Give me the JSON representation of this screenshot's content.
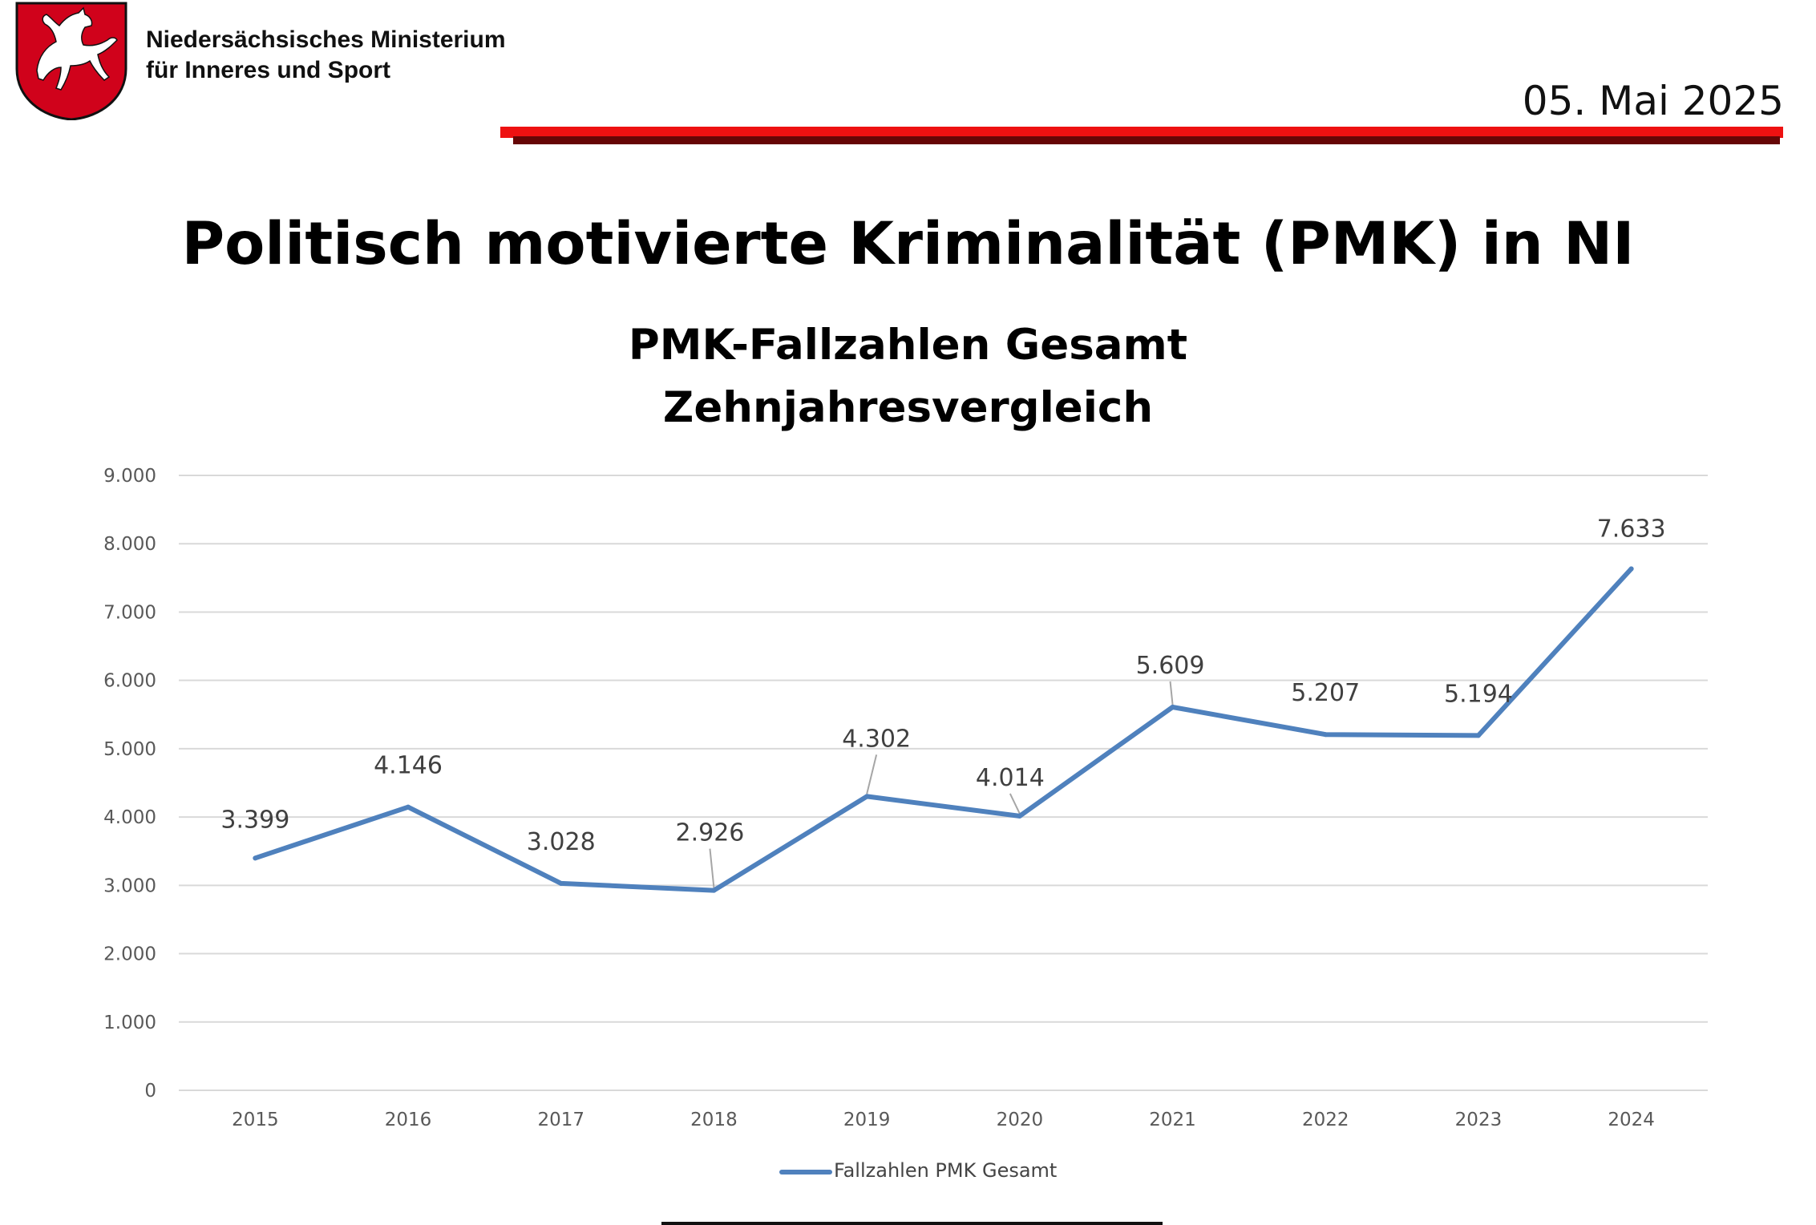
{
  "header": {
    "ministry_line_1": "Niedersächsisches Ministerium",
    "ministry_line_2": "für Inneres und Sport",
    "date": "05. Mai 2025"
  },
  "page": {
    "title": "Politisch motivierte Kriminalität (PMK) in NI"
  },
  "colors": {
    "accent_red": "#ee1111",
    "accent_dark": "#660606",
    "series_line": "#4f81bd",
    "gridline": "#d9d9d9",
    "logo_red": "#d0021b"
  },
  "chart_data": {
    "type": "line",
    "title": "PMK-Fallzahlen Gesamt",
    "subtitle": "Zehnjahresvergleich",
    "categories": [
      "2015",
      "2016",
      "2017",
      "2018",
      "2019",
      "2020",
      "2021",
      "2022",
      "2023",
      "2024"
    ],
    "series": [
      {
        "name": "Fallzahlen PMK Gesamt",
        "values": [
          3399,
          4146,
          3028,
          2926,
          4302,
          4014,
          5609,
          5207,
          5194,
          7633
        ],
        "labels": [
          "3.399",
          "4.146",
          "3.028",
          "2.926",
          "4.302",
          "4.014",
          "5.609",
          "5.207",
          "5.194",
          "7.633"
        ]
      }
    ],
    "ylim": [
      0,
      9000
    ],
    "yticks": [
      0,
      1000,
      2000,
      3000,
      4000,
      5000,
      6000,
      7000,
      8000,
      9000
    ],
    "ytick_labels": [
      "0",
      "1.000",
      "2.000",
      "3.000",
      "4.000",
      "5.000",
      "6.000",
      "7.000",
      "8.000",
      "9.000"
    ],
    "grid": true,
    "legend_position": "bottom"
  }
}
